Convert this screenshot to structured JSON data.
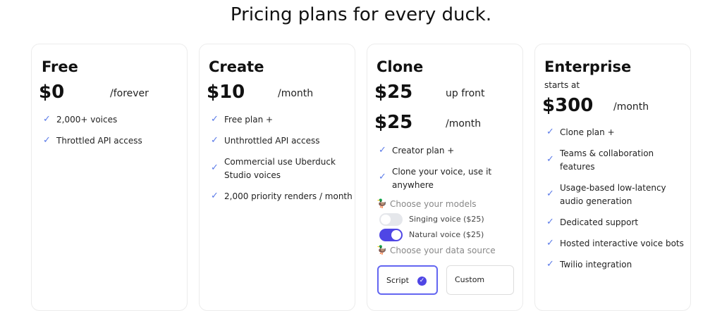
{
  "title": "Pricing plans for every duck.",
  "accent": "#4f46e5",
  "check_color": "#5b7be8",
  "plans": [
    {
      "name": "Free",
      "price": "$0",
      "period": "/forever",
      "features": [
        "2,000+ voices",
        "Throttled API access"
      ]
    },
    {
      "name": "Create",
      "price": "$10",
      "period": "/month",
      "features": [
        "Free plan +",
        "Unthrottled API access",
        "Commercial use Uberduck Studio voices",
        "2,000 priority renders / month"
      ]
    },
    {
      "name": "Clone",
      "price": "$25",
      "period": "up front",
      "price2": "$25",
      "period2": "/month",
      "features": [
        "Creator plan +",
        "Clone your voice, use it anywhere"
      ],
      "models_label": "Choose your models",
      "models": [
        {
          "label": "Singing voice ($25)",
          "enabled": false
        },
        {
          "label": "Natural voice ($25)",
          "enabled": true
        }
      ],
      "source_label": "Choose your data source",
      "sources": [
        {
          "label": "Script",
          "selected": true
        },
        {
          "label": "Custom",
          "selected": false
        }
      ]
    },
    {
      "name": "Enterprise",
      "prefix": "starts at",
      "price": "$300",
      "period": "/month",
      "features": [
        "Clone plan +",
        "Teams & collaboration features",
        "Usage-based low-latency audio generation",
        "Dedicated support",
        "Hosted interactive voice bots",
        "Twilio integration"
      ]
    }
  ]
}
